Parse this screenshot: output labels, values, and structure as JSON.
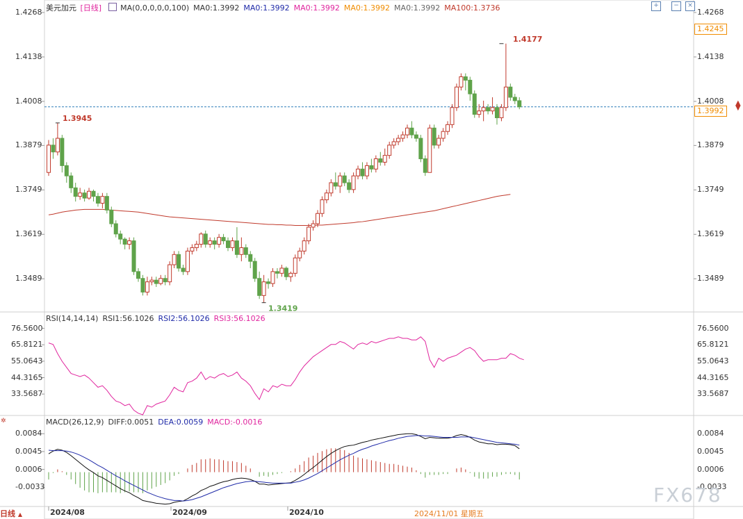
{
  "symbol": "美元加元",
  "period": "[日线]",
  "period_footer": "日线",
  "toolbar": {
    "icons": [
      "zoom-in-icon",
      "zoom-out-icon",
      "close-icon"
    ]
  },
  "main_legend": [
    {
      "text": "MA(0,0,0,0,0,100)",
      "color": "#333333"
    },
    {
      "text": "MA0:1.3992",
      "color": "#333333"
    },
    {
      "text": "MA0:1.3992",
      "color": "#1f2aa8"
    },
    {
      "text": "MA0:1.3992",
      "color": "#e0259e"
    },
    {
      "text": "MA0:1.3992",
      "color": "#f08c00"
    },
    {
      "text": "MA0:1.3992",
      "color": "#666666"
    },
    {
      "text": "MA100:1.3736",
      "color": "#c0392b"
    }
  ],
  "rsi_legend": [
    {
      "text": "RSI(14,14,14)",
      "color": "#333333"
    },
    {
      "text": "RSI1:56.1026",
      "color": "#333333"
    },
    {
      "text": "RSI2:56.1026",
      "color": "#1f2aa8"
    },
    {
      "text": "RSI3:56.1026",
      "color": "#e0259e"
    }
  ],
  "macd_legend": [
    {
      "text": "MACD(26,12,9)",
      "color": "#333333"
    },
    {
      "text": "DIFF:0.0051",
      "color": "#333333"
    },
    {
      "text": "DEA:0.0059",
      "color": "#1f2aa8"
    },
    {
      "text": "MACD:-0.0016",
      "color": "#e0259e"
    }
  ],
  "price_ticks": [
    "1.4268",
    "1.4138",
    "1.4008",
    "1.3879",
    "1.3749",
    "1.3619",
    "1.3489"
  ],
  "right_price_labels": [
    "1.4268",
    "1.4245",
    "1.4138",
    "1.4008",
    "1.3992",
    "1.3879",
    "1.3749",
    "1.3619",
    "1.3489"
  ],
  "rsi_ticks": [
    "76.5600",
    "65.8121",
    "55.0643",
    "44.3165",
    "33.5687"
  ],
  "macd_ticks": [
    "0.0084",
    "0.0045",
    "0.0006",
    "-0.0033"
  ],
  "x_labels": [
    "2024/08",
    "2024/09",
    "2024/10"
  ],
  "cursor_date": "2024/11/01 星期五",
  "annotations": {
    "high": "1.4177",
    "prev_high": "1.3945",
    "low": "1.3419"
  },
  "current_price": "1.3992",
  "watermark": "FX678",
  "colors": {
    "up": "#c0392b",
    "down": "#5fa34a",
    "ma100": "#c0392b",
    "rsi": "#e0259e",
    "diff": "#111111",
    "dea": "#1f2aa8"
  },
  "chart_data": {
    "type": "candlestick",
    "price_range": [
      1.34,
      1.4268
    ],
    "rsi_range": [
      20,
      80
    ],
    "macd_range": [
      -0.0072,
      0.0098
    ],
    "candles": [
      [
        1.38,
        1.388,
        1.379,
        1.3895
      ],
      [
        1.388,
        1.386,
        1.384,
        1.39
      ],
      [
        1.386,
        1.39,
        1.385,
        1.3945
      ],
      [
        1.39,
        1.382,
        1.38,
        1.391
      ],
      [
        1.382,
        1.379,
        1.377,
        1.383
      ],
      [
        1.379,
        1.3755,
        1.374,
        1.38
      ],
      [
        1.3755,
        1.373,
        1.3715,
        1.377
      ],
      [
        1.373,
        1.374,
        1.372,
        1.3755
      ],
      [
        1.374,
        1.3725,
        1.3715,
        1.375
      ],
      [
        1.3725,
        1.3745,
        1.372,
        1.3755
      ],
      [
        1.3745,
        1.373,
        1.3715,
        1.375
      ],
      [
        1.373,
        1.371,
        1.37,
        1.374
      ],
      [
        1.371,
        1.373,
        1.3695,
        1.374
      ],
      [
        1.373,
        1.369,
        1.368,
        1.374
      ],
      [
        1.369,
        1.365,
        1.364,
        1.37
      ],
      [
        1.365,
        1.362,
        1.361,
        1.366
      ],
      [
        1.362,
        1.3605,
        1.359,
        1.363
      ],
      [
        1.3605,
        1.359,
        1.3575,
        1.361
      ],
      [
        1.359,
        1.36,
        1.3575,
        1.361
      ],
      [
        1.36,
        1.351,
        1.35,
        1.361
      ],
      [
        1.351,
        1.349,
        1.348,
        1.352
      ],
      [
        1.349,
        1.345,
        1.344,
        1.35
      ],
      [
        1.345,
        1.348,
        1.344,
        1.3495
      ],
      [
        1.348,
        1.3485,
        1.347,
        1.3495
      ],
      [
        1.3485,
        1.3475,
        1.3465,
        1.3495
      ],
      [
        1.3475,
        1.349,
        1.347,
        1.35
      ],
      [
        1.349,
        1.348,
        1.347,
        1.35
      ],
      [
        1.348,
        1.353,
        1.347,
        1.354
      ],
      [
        1.353,
        1.356,
        1.352,
        1.357
      ],
      [
        1.356,
        1.352,
        1.351,
        1.357
      ],
      [
        1.352,
        1.351,
        1.35,
        1.353
      ],
      [
        1.351,
        1.357,
        1.35,
        1.358
      ],
      [
        1.357,
        1.358,
        1.356,
        1.359
      ],
      [
        1.358,
        1.359,
        1.357,
        1.36
      ],
      [
        1.359,
        1.362,
        1.358,
        1.3625
      ],
      [
        1.362,
        1.359,
        1.358,
        1.363
      ],
      [
        1.359,
        1.36,
        1.358,
        1.361
      ],
      [
        1.36,
        1.359,
        1.3575,
        1.361
      ],
      [
        1.359,
        1.361,
        1.358,
        1.362
      ],
      [
        1.361,
        1.36,
        1.359,
        1.362
      ],
      [
        1.36,
        1.358,
        1.357,
        1.361
      ],
      [
        1.358,
        1.36,
        1.357,
        1.361
      ],
      [
        1.36,
        1.356,
        1.355,
        1.364
      ],
      [
        1.356,
        1.358,
        1.354,
        1.361
      ],
      [
        1.358,
        1.356,
        1.355,
        1.359
      ],
      [
        1.356,
        1.354,
        1.352,
        1.357
      ],
      [
        1.354,
        1.349,
        1.348,
        1.355
      ],
      [
        1.349,
        1.344,
        1.343,
        1.351
      ],
      [
        1.344,
        1.348,
        1.3419,
        1.35
      ],
      [
        1.348,
        1.3475,
        1.346,
        1.349
      ],
      [
        1.3475,
        1.351,
        1.3465,
        1.352
      ],
      [
        1.351,
        1.3505,
        1.349,
        1.352
      ],
      [
        1.3505,
        1.352,
        1.3495,
        1.353
      ],
      [
        1.352,
        1.3495,
        1.3485,
        1.3525
      ],
      [
        1.3495,
        1.3505,
        1.348,
        1.351
      ],
      [
        1.3505,
        1.355,
        1.3495,
        1.356
      ],
      [
        1.355,
        1.357,
        1.354,
        1.358
      ],
      [
        1.357,
        1.36,
        1.356,
        1.361
      ],
      [
        1.36,
        1.364,
        1.359,
        1.365
      ],
      [
        1.364,
        1.365,
        1.363,
        1.366
      ],
      [
        1.365,
        1.368,
        1.364,
        1.369
      ],
      [
        1.368,
        1.372,
        1.367,
        1.373
      ],
      [
        1.372,
        1.374,
        1.371,
        1.375
      ],
      [
        1.374,
        1.377,
        1.373,
        1.378
      ],
      [
        1.377,
        1.376,
        1.375,
        1.38
      ],
      [
        1.376,
        1.379,
        1.374,
        1.38
      ],
      [
        1.379,
        1.377,
        1.376,
        1.38
      ],
      [
        1.377,
        1.375,
        1.374,
        1.378
      ],
      [
        1.375,
        1.379,
        1.374,
        1.38
      ],
      [
        1.379,
        1.381,
        1.378,
        1.382
      ],
      [
        1.381,
        1.379,
        1.378,
        1.383
      ],
      [
        1.379,
        1.382,
        1.378,
        1.383
      ],
      [
        1.382,
        1.381,
        1.38,
        1.384
      ],
      [
        1.381,
        1.384,
        1.38,
        1.385
      ],
      [
        1.384,
        1.383,
        1.382,
        1.386
      ],
      [
        1.383,
        1.385,
        1.382,
        1.387
      ],
      [
        1.385,
        1.388,
        1.384,
        1.389
      ],
      [
        1.388,
        1.389,
        1.387,
        1.39
      ],
      [
        1.389,
        1.39,
        1.388,
        1.391
      ],
      [
        1.39,
        1.391,
        1.389,
        1.392
      ],
      [
        1.391,
        1.393,
        1.39,
        1.394
      ],
      [
        1.393,
        1.391,
        1.39,
        1.395
      ],
      [
        1.391,
        1.39,
        1.389,
        1.392
      ],
      [
        1.39,
        1.384,
        1.383,
        1.391
      ],
      [
        1.384,
        1.38,
        1.379,
        1.385
      ],
      [
        1.38,
        1.393,
        1.38,
        1.394
      ],
      [
        1.393,
        1.388,
        1.387,
        1.394
      ],
      [
        1.388,
        1.39,
        1.387,
        1.391
      ],
      [
        1.39,
        1.392,
        1.389,
        1.393
      ],
      [
        1.392,
        1.394,
        1.391,
        1.395
      ],
      [
        1.394,
        1.399,
        1.393,
        1.4
      ],
      [
        1.399,
        1.405,
        1.398,
        1.406
      ],
      [
        1.405,
        1.408,
        1.404,
        1.409
      ],
      [
        1.408,
        1.407,
        1.404,
        1.409
      ],
      [
        1.407,
        1.403,
        1.401,
        1.408
      ],
      [
        1.403,
        1.397,
        1.396,
        1.404
      ],
      [
        1.397,
        1.398,
        1.396,
        1.4
      ],
      [
        1.398,
        1.399,
        1.395,
        1.401
      ],
      [
        1.399,
        1.398,
        1.397,
        1.4
      ],
      [
        1.398,
        1.399,
        1.397,
        1.402
      ],
      [
        1.399,
        1.396,
        1.394,
        1.4
      ],
      [
        1.396,
        1.399,
        1.395,
        1.4
      ],
      [
        1.399,
        1.405,
        1.398,
        1.4177
      ],
      [
        1.405,
        1.402,
        1.401,
        1.406
      ],
      [
        1.402,
        1.401,
        1.4,
        1.403
      ],
      [
        1.401,
        1.3992,
        1.3985,
        1.402
      ]
    ],
    "ma100": [
      1.3676,
      1.3678,
      1.3681,
      1.3684,
      1.3686,
      1.3688,
      1.369,
      1.3691,
      1.3692,
      1.3692,
      1.3692,
      1.3692,
      1.3692,
      1.3691,
      1.369,
      1.3689,
      1.3688,
      1.3687,
      1.3686,
      1.3685,
      1.3684,
      1.3682,
      1.368,
      1.3678,
      1.3676,
      1.3674,
      1.3672,
      1.367,
      1.3669,
      1.3668,
      1.3667,
      1.3666,
      1.3665,
      1.3664,
      1.3663,
      1.3662,
      1.3661,
      1.366,
      1.3659,
      1.3658,
      1.3657,
      1.3656,
      1.3655,
      1.3654,
      1.3653,
      1.3652,
      1.3651,
      1.365,
      1.3649,
      1.3648,
      1.3648,
      1.3647,
      1.3647,
      1.3646,
      1.3646,
      1.3645,
      1.3645,
      1.3645,
      1.3645,
      1.3645,
      1.3646,
      1.3646,
      1.3647,
      1.3648,
      1.3649,
      1.365,
      1.3651,
      1.3652,
      1.3653,
      1.3655,
      1.3656,
      1.3658,
      1.366,
      1.3662,
      1.3664,
      1.3666,
      1.3668,
      1.367,
      1.3672,
      1.3674,
      1.3676,
      1.3678,
      1.368,
      1.3682,
      1.3684,
      1.3686,
      1.3688,
      1.3691,
      1.3694,
      1.3697,
      1.37,
      1.3703,
      1.3706,
      1.3709,
      1.3712,
      1.3715,
      1.3718,
      1.3721,
      1.3724,
      1.3727,
      1.373,
      1.3732,
      1.3734,
      1.3736
    ],
    "rsi": [
      67,
      66,
      60,
      55,
      51,
      47,
      46,
      45,
      46,
      44,
      41,
      38,
      39,
      36,
      32,
      29,
      28,
      26,
      27,
      23,
      21,
      20,
      26,
      25,
      27,
      28,
      29,
      33,
      38,
      36,
      35,
      41,
      42,
      44,
      48,
      43,
      45,
      44,
      46,
      47,
      45,
      46,
      48,
      44,
      42,
      39,
      34,
      30,
      37,
      35,
      39,
      38,
      40,
      39,
      39,
      43,
      48,
      52,
      55,
      58,
      60,
      62,
      64,
      66,
      66,
      68,
      67,
      65,
      63,
      66,
      67,
      66,
      68,
      67,
      68,
      69,
      70,
      70,
      71,
      70,
      70,
      69,
      69,
      71,
      68,
      56,
      51,
      57,
      55,
      57,
      58,
      59,
      61,
      63,
      64,
      62,
      58,
      55,
      56,
      56,
      56,
      57,
      57,
      60,
      59,
      57,
      56
    ],
    "diff": [
      0.004,
      0.0046,
      0.005,
      0.0048,
      0.0043,
      0.0036,
      0.0028,
      0.002,
      0.0012,
      0.0005,
      -0.0001,
      -0.0008,
      -0.0012,
      -0.0018,
      -0.0024,
      -0.003,
      -0.0036,
      -0.0041,
      -0.0045,
      -0.0051,
      -0.0056,
      -0.0062,
      -0.0064,
      -0.0066,
      -0.0068,
      -0.0069,
      -0.007,
      -0.0069,
      -0.0066,
      -0.0064,
      -0.0063,
      -0.0058,
      -0.0052,
      -0.0047,
      -0.004,
      -0.0036,
      -0.0031,
      -0.0028,
      -0.0024,
      -0.0021,
      -0.0019,
      -0.0016,
      -0.0014,
      -0.0013,
      -0.0014,
      -0.0016,
      -0.002,
      -0.0026,
      -0.0026,
      -0.0028,
      -0.0027,
      -0.0026,
      -0.0025,
      -0.0024,
      -0.0023,
      -0.0018,
      -0.0012,
      -0.0005,
      0.0003,
      0.001,
      0.0018,
      0.0026,
      0.0034,
      0.0041,
      0.0047,
      0.0052,
      0.0056,
      0.0058,
      0.0059,
      0.0062,
      0.0065,
      0.0067,
      0.007,
      0.0072,
      0.0074,
      0.0076,
      0.0078,
      0.008,
      0.0082,
      0.0083,
      0.0084,
      0.0084,
      0.0082,
      0.0078,
      0.0073,
      0.0076,
      0.0075,
      0.0074,
      0.0074,
      0.0074,
      0.0076,
      0.008,
      0.0082,
      0.008,
      0.0076,
      0.007,
      0.0066,
      0.0064,
      0.0062,
      0.0062,
      0.006,
      0.0061,
      0.0061,
      0.006,
      0.0058,
      0.0051
    ],
    "dea": [
      0.0048,
      0.0047,
      0.0047,
      0.0047,
      0.0046,
      0.0044,
      0.0041,
      0.0037,
      0.0032,
      0.0027,
      0.0021,
      0.0015,
      0.001,
      0.0004,
      -0.0002,
      -0.0008,
      -0.0013,
      -0.0019,
      -0.0024,
      -0.0029,
      -0.0034,
      -0.0039,
      -0.0044,
      -0.0048,
      -0.0052,
      -0.0055,
      -0.0058,
      -0.006,
      -0.0062,
      -0.0062,
      -0.0063,
      -0.0062,
      -0.006,
      -0.0057,
      -0.0054,
      -0.005,
      -0.0046,
      -0.0042,
      -0.0038,
      -0.0034,
      -0.0031,
      -0.0028,
      -0.0025,
      -0.0023,
      -0.0021,
      -0.002,
      -0.002,
      -0.0021,
      -0.0022,
      -0.0023,
      -0.0024,
      -0.0024,
      -0.0024,
      -0.0024,
      -0.0024,
      -0.0022,
      -0.002,
      -0.0017,
      -0.0013,
      -0.0008,
      -0.0003,
      0.0003,
      0.0009,
      0.0015,
      0.0021,
      0.0027,
      0.0032,
      0.0037,
      0.0041,
      0.0046,
      0.005,
      0.0053,
      0.0057,
      0.006,
      0.0063,
      0.0066,
      0.0069,
      0.0071,
      0.0074,
      0.0076,
      0.0078,
      0.0079,
      0.008,
      0.008,
      0.0079,
      0.0079,
      0.0078,
      0.0077,
      0.0076,
      0.0076,
      0.0076,
      0.0076,
      0.0077,
      0.0077,
      0.0077,
      0.0075,
      0.0073,
      0.0071,
      0.0069,
      0.0067,
      0.0065,
      0.0064,
      0.0063,
      0.0062,
      0.0061,
      0.0059
    ],
    "macd_hist": [
      -0.0016,
      -0.0002,
      0.0006,
      0.0002,
      -0.0006,
      -0.0016,
      -0.0026,
      -0.0034,
      -0.004,
      -0.0044,
      -0.0044,
      -0.0046,
      -0.0044,
      -0.0044,
      -0.0044,
      -0.0044,
      -0.0046,
      -0.0044,
      -0.0042,
      -0.0044,
      -0.0044,
      -0.0046,
      -0.004,
      -0.0036,
      -0.0032,
      -0.0028,
      -0.0024,
      -0.0018,
      -0.0008,
      -0.0004,
      0.0,
      0.0008,
      0.0016,
      0.002,
      0.0028,
      0.0028,
      0.003,
      0.0028,
      0.0028,
      0.0026,
      0.0024,
      0.0024,
      0.0022,
      0.002,
      0.0014,
      0.0008,
      0.0,
      -0.001,
      -0.0008,
      -0.001,
      -0.0006,
      -0.0004,
      -0.0002,
      0.0,
      0.0002,
      0.0008,
      0.0016,
      0.0024,
      0.0032,
      0.0036,
      0.0042,
      0.0046,
      0.005,
      0.0052,
      0.0052,
      0.005,
      0.0048,
      0.0042,
      0.0036,
      0.0032,
      0.003,
      0.0028,
      0.0026,
      0.0024,
      0.0022,
      0.002,
      0.0018,
      0.0018,
      0.0016,
      0.0014,
      0.0012,
      0.001,
      0.0004,
      -0.0004,
      -0.0012,
      -0.0006,
      -0.0006,
      -0.0006,
      -0.0004,
      -0.0004,
      0.0,
      0.0008,
      0.001,
      0.0006,
      -0.0002,
      -0.001,
      -0.0014,
      -0.0014,
      -0.0014,
      -0.001,
      -0.001,
      -0.0006,
      -0.0004,
      -0.0004,
      -0.0006,
      -0.0016
    ]
  }
}
